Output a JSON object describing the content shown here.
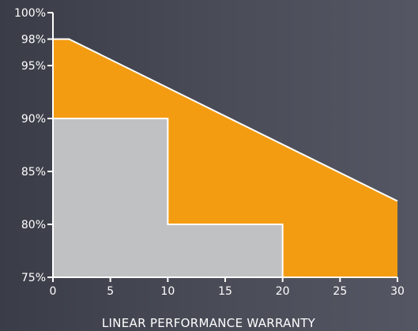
{
  "chart_data": {
    "type": "area",
    "title": "",
    "xlabel": "LINEAR PERFORMANCE WARRANTY",
    "ylabel": "",
    "xlim": [
      0,
      30
    ],
    "ylim": [
      75,
      100
    ],
    "x_ticks": [
      0,
      5,
      10,
      15,
      20,
      25,
      30
    ],
    "x_tick_labels": [
      "0",
      "5",
      "10",
      "15",
      "20",
      "25",
      "30"
    ],
    "y_ticks": [
      75,
      80,
      85,
      90,
      95,
      97.5,
      100
    ],
    "y_tick_labels": [
      "75%",
      "80%",
      "85%",
      "90%",
      "95%",
      "98%",
      "100%"
    ],
    "grid": false,
    "series": [
      {
        "shape": "linear",
        "color": "#f39c12",
        "points": [
          [
            0,
            97.5
          ],
          [
            1.4,
            97.5
          ],
          [
            30,
            82.2
          ]
        ]
      },
      {
        "shape": "step",
        "color": "#c0c1c3",
        "points": [
          [
            0,
            90
          ],
          [
            10,
            90
          ],
          [
            10,
            80
          ],
          [
            20,
            80
          ],
          [
            20,
            75
          ]
        ]
      }
    ]
  }
}
